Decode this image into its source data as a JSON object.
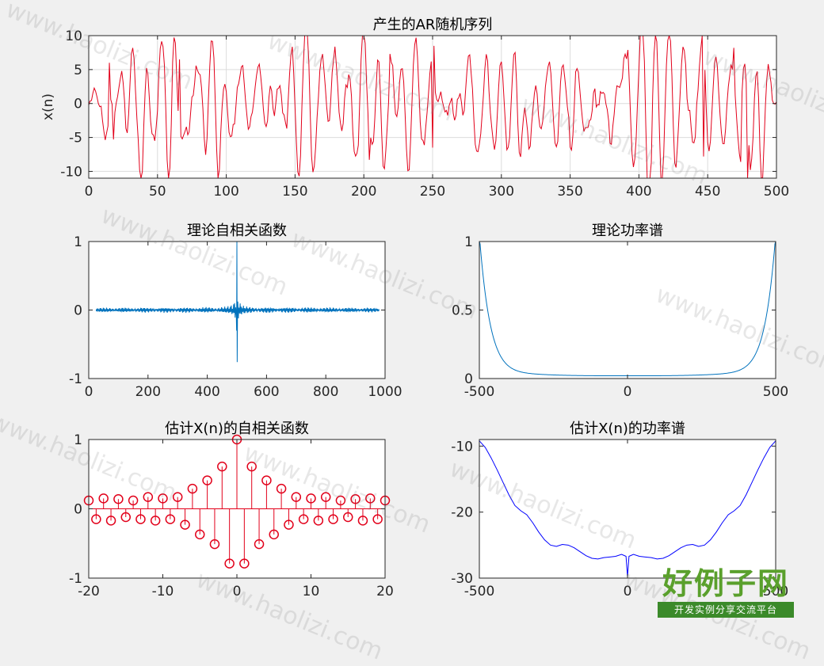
{
  "watermark": {
    "text": "www.haolizi.com",
    "logo_big": "好例子网",
    "logo_small": "开发实例分享交流平台"
  },
  "colors": {
    "red": "#e2001a",
    "blue": "#0072bd",
    "pureblue": "#0000ff",
    "grid": "#dcdcdc"
  },
  "chart_data": [
    {
      "id": "ar",
      "type": "line",
      "title": "产生的AR随机序列",
      "xlabel": "",
      "ylabel": "x(n)",
      "xlim": [
        0,
        500
      ],
      "ylim": [
        -11,
        10
      ],
      "xticks": [
        0,
        50,
        100,
        150,
        200,
        250,
        300,
        350,
        400,
        450,
        500
      ],
      "yticks": [
        -10,
        -5,
        0,
        5,
        10
      ],
      "grid": true,
      "series": [
        {
          "color": "#e2001a",
          "kind": "random_ar",
          "n": 500,
          "peaks": [
            [
              15,
              6
            ],
            [
              18,
              -5.3
            ],
            [
              66,
              6.5
            ],
            [
              219,
              7.3
            ],
            [
              204,
              -8.3
            ],
            [
              251,
              8.5
            ],
            [
              250,
              -6.5
            ],
            [
              469,
              8.2
            ],
            [
              479,
              -11
            ],
            [
              474,
              -8.6
            ],
            [
              447,
              -7.8
            ]
          ]
        }
      ]
    },
    {
      "id": "theo_acf",
      "type": "line",
      "title": "理论自相关函数",
      "xlabel": "",
      "ylabel": "",
      "xlim": [
        0,
        1000
      ],
      "ylim": [
        -1,
        1
      ],
      "xticks": [
        0,
        200,
        400,
        600,
        800,
        1000
      ],
      "yticks": [
        -1,
        0,
        1
      ],
      "grid": false,
      "series": [
        {
          "color": "#0072bd",
          "kind": "acf",
          "center": 500,
          "peak": 1.0,
          "min": -0.76
        }
      ]
    },
    {
      "id": "theo_psd",
      "type": "line",
      "title": "理论功率谱",
      "xlabel": "",
      "ylabel": "",
      "xlim": [
        -500,
        500
      ],
      "ylim": [
        0,
        1
      ],
      "xticks": [
        -500,
        0,
        500
      ],
      "yticks": [
        0,
        0.5,
        1
      ],
      "grid": false,
      "series": [
        {
          "color": "#0072bd",
          "kind": "psd_u",
          "ends": 1.0,
          "floor": 0.02
        }
      ]
    },
    {
      "id": "est_acf",
      "type": "stem",
      "title": "估计X(n)的自相关函数",
      "xlabel": "",
      "ylabel": "",
      "xlim": [
        -20,
        20
      ],
      "ylim": [
        -1,
        1
      ],
      "xticks": [
        -20,
        -10,
        0,
        10,
        20
      ],
      "yticks": [
        -1,
        0,
        1
      ],
      "grid": false,
      "x": [
        -20,
        -19,
        -18,
        -17,
        -16,
        -15,
        -14,
        -13,
        -12,
        -11,
        -10,
        -9,
        -8,
        -7,
        -6,
        -5,
        -4,
        -3,
        -2,
        -1,
        0,
        1,
        2,
        3,
        4,
        5,
        6,
        7,
        8,
        9,
        10,
        11,
        12,
        13,
        14,
        15,
        16,
        17,
        18,
        19,
        20
      ],
      "values": [
        0.12,
        -0.15,
        0.15,
        -0.17,
        0.14,
        -0.12,
        0.12,
        -0.15,
        0.17,
        -0.17,
        0.15,
        -0.15,
        0.17,
        -0.23,
        0.29,
        -0.37,
        0.41,
        -0.51,
        0.61,
        -0.79,
        1.0,
        -0.79,
        0.61,
        -0.51,
        0.41,
        -0.37,
        0.29,
        -0.23,
        0.17,
        -0.15,
        0.15,
        -0.17,
        0.17,
        -0.15,
        0.12,
        -0.12,
        0.14,
        -0.17,
        0.15,
        -0.15,
        0.12
      ],
      "series": [
        {
          "color": "#e2001a"
        }
      ]
    },
    {
      "id": "est_psd",
      "type": "line",
      "title": "估计X(n)的功率谱",
      "xlabel": "",
      "ylabel": "",
      "xlim": [
        -500,
        500
      ],
      "ylim": [
        -30,
        -9
      ],
      "xticks": [
        -500,
        0,
        500
      ],
      "yticks": [
        -30,
        -20,
        -10
      ],
      "grid": false,
      "x": [
        -500,
        -480,
        -460,
        -440,
        -420,
        -400,
        -380,
        -360,
        -340,
        -320,
        -300,
        -280,
        -260,
        -240,
        -220,
        -200,
        -180,
        -160,
        -140,
        -120,
        -100,
        -80,
        -60,
        -40,
        -20,
        -5,
        0,
        5,
        20,
        40,
        60,
        80,
        100,
        120,
        140,
        160,
        180,
        200,
        220,
        240,
        260,
        280,
        300,
        320,
        340,
        360,
        380,
        400,
        420,
        440,
        460,
        480,
        500
      ],
      "values": [
        -9.2,
        -10.2,
        -11.8,
        -13.6,
        -15.5,
        -17.4,
        -19.0,
        -19.8,
        -20.4,
        -21.6,
        -23.0,
        -24.2,
        -25.0,
        -25.2,
        -24.9,
        -25.0,
        -25.4,
        -26.0,
        -26.6,
        -27.0,
        -27.1,
        -26.9,
        -26.8,
        -26.7,
        -26.4,
        -26.7,
        -29.8,
        -26.7,
        -26.4,
        -26.7,
        -26.8,
        -26.9,
        -27.1,
        -27.0,
        -26.6,
        -26.0,
        -25.4,
        -25.0,
        -24.9,
        -25.2,
        -25.0,
        -24.2,
        -23.0,
        -21.6,
        -20.4,
        -19.8,
        -19.0,
        -17.4,
        -15.5,
        -13.6,
        -11.8,
        -10.2,
        -9.2
      ],
      "series": [
        {
          "color": "#0000ff"
        }
      ]
    }
  ]
}
